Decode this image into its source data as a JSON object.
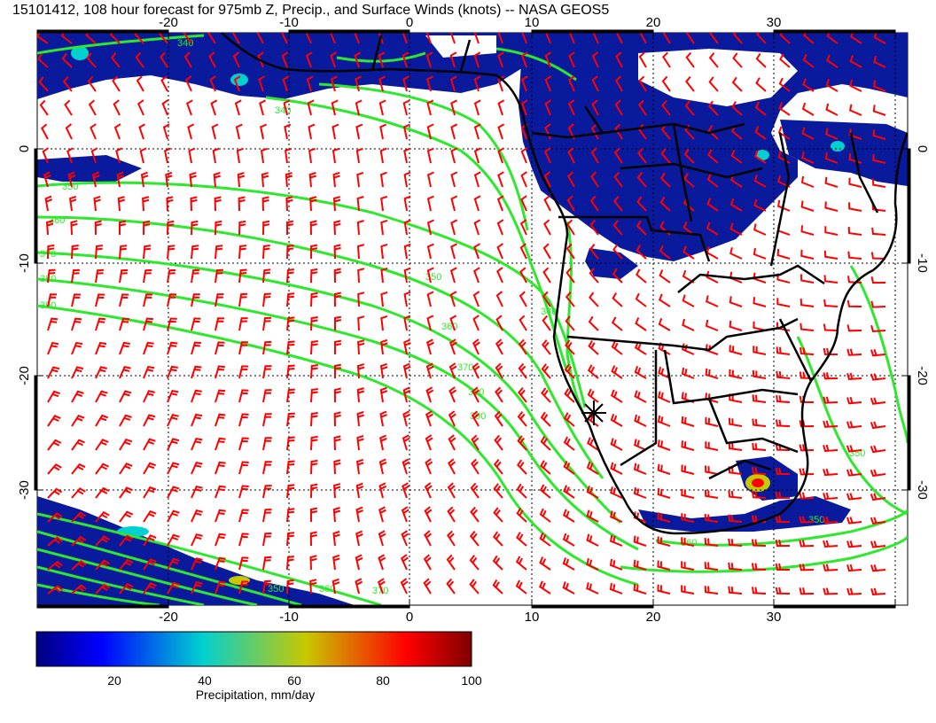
{
  "title": "15101412, 108 hour forecast for 975mb Z, Precip., and Surface Winds (knots) -- NASA GEOS5",
  "map": {
    "lon_range": [
      -30,
      42
    ],
    "lat_range": [
      -40,
      10
    ],
    "lon_ticks": [
      "-20",
      "-10",
      "0",
      "10",
      "20",
      "30"
    ],
    "lat_ticks": [
      "0",
      "-10",
      "-20",
      "-30"
    ],
    "grid": "dotted, every 10 degrees",
    "colors": {
      "contour": "#2ee82e",
      "wind_barb": "#ff0000",
      "coastline": "#000000",
      "precip_low": "#0a1a8c"
    }
  },
  "contour_labels": [
    "340",
    "350",
    "360",
    "370",
    "380",
    "390",
    "350",
    "360",
    "370",
    "380",
    "390",
    "360",
    "350",
    "340",
    "350",
    "340",
    "350",
    "360",
    "370"
  ],
  "station_marker": "asterisk",
  "colorbar": {
    "label": "Precipitation, mm/day",
    "ticks": [
      "20",
      "40",
      "60",
      "80",
      "100"
    ],
    "range": [
      0,
      100
    ],
    "colormap": [
      "#00007f",
      "#0000ff",
      "#00d0d0",
      "#c8c800",
      "#ff0000",
      "#7f0000"
    ]
  }
}
